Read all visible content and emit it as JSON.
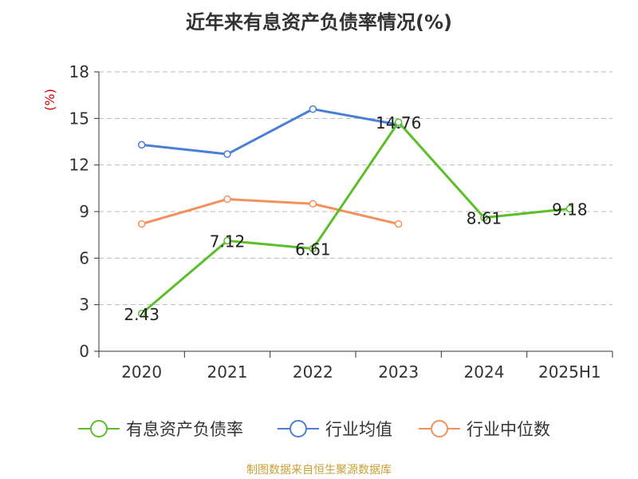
{
  "chart_data": {
    "type": "line",
    "title": "近年来有息资产负债率情况(%)",
    "ylabel": "(%)",
    "xlabel": "",
    "categories": [
      "2020",
      "2021",
      "2022",
      "2023",
      "2024",
      "2025H1"
    ],
    "ylim": [
      0,
      18
    ],
    "yticks": [
      0,
      3,
      6,
      9,
      12,
      15,
      18
    ],
    "grid": true,
    "legend_position": "bottom",
    "series": [
      {
        "name": "有息资产负债率",
        "color": "#5cbf2a",
        "values": [
          2.43,
          7.12,
          6.61,
          14.76,
          8.61,
          9.18
        ],
        "show_labels": true
      },
      {
        "name": "行业均值",
        "color": "#4b7fd6",
        "values": [
          13.3,
          12.7,
          15.6,
          14.6,
          null,
          null
        ],
        "show_labels": false
      },
      {
        "name": "行业中位数",
        "color": "#f4905a",
        "values": [
          8.2,
          9.8,
          9.5,
          8.2,
          null,
          null
        ],
        "show_labels": false
      }
    ]
  },
  "source_note": "制图数据来自恒生聚源数据库",
  "colors": {
    "title": "#333333",
    "axis": "#333333",
    "grid": "#bbbbbb",
    "ylabel": "#d60000",
    "source_note": "#c8a036"
  }
}
